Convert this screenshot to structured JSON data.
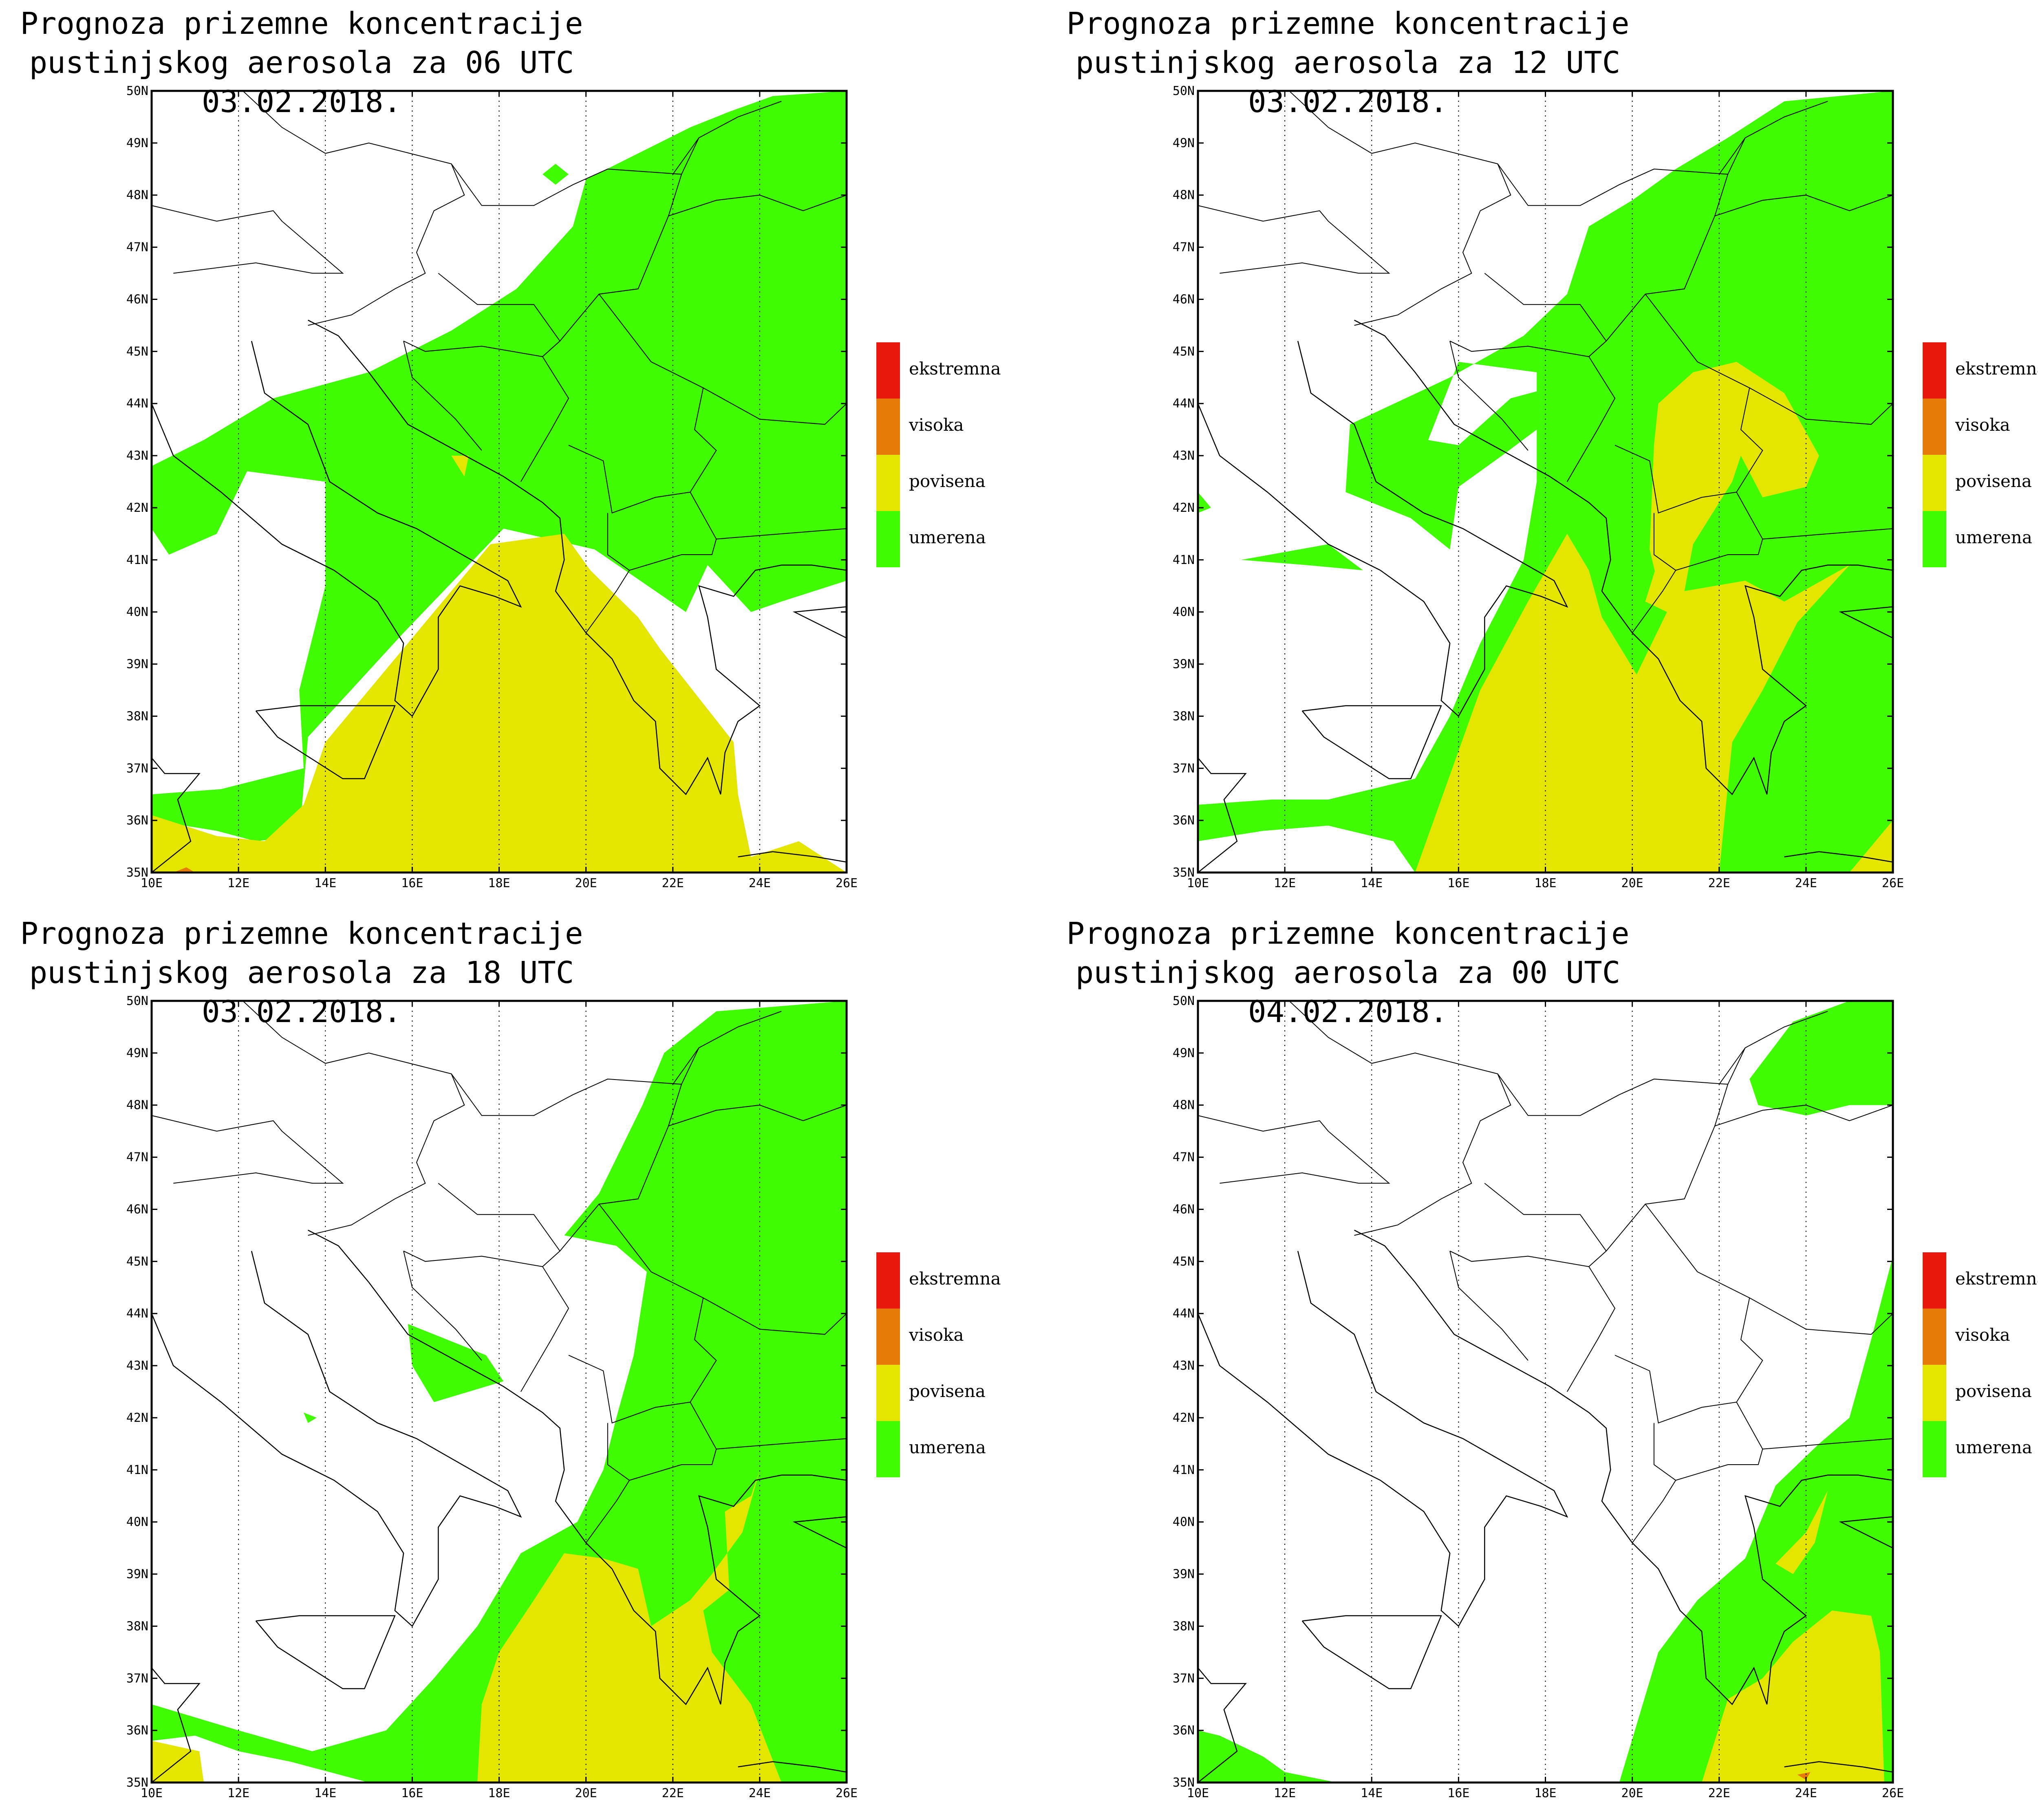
{
  "colors": {
    "umerena": "#3ffd00",
    "povisena": "#e5e600",
    "visoka": "#e77b07",
    "ekstremna": "#e9190d",
    "border": "#000000",
    "grid": "#000000"
  },
  "axes": {
    "lat_labels": [
      "35N",
      "36N",
      "37N",
      "38N",
      "39N",
      "40N",
      "41N",
      "42N",
      "43N",
      "44N",
      "45N",
      "46N",
      "47N",
      "48N",
      "49N",
      "50N"
    ],
    "lon_labels": [
      "10E",
      "12E",
      "14E",
      "16E",
      "18E",
      "20E",
      "22E",
      "24E",
      "26E"
    ]
  },
  "legend": [
    {
      "label": "ekstremna",
      "color_key": "ekstremna"
    },
    {
      "label": "visoka",
      "color_key": "visoka"
    },
    {
      "label": "povisena",
      "color_key": "povisena"
    },
    {
      "label": "umerena",
      "color_key": "umerena"
    }
  ],
  "panels": [
    {
      "id": "p06",
      "title_line1": "Prognoza prizemne koncentracije",
      "title_line2": "pustinjskog aerosola za 06 UTC 03.02.2018."
    },
    {
      "id": "p12",
      "title_line1": "Prognoza prizemne koncentracije",
      "title_line2": "pustinjskog aerosola za 12 UTC 03.02.2018."
    },
    {
      "id": "p18",
      "title_line1": "Prognoza prizemne koncentracije",
      "title_line2": "pustinjskog aerosola za 18 UTC 03.02.2018."
    },
    {
      "id": "p00",
      "title_line1": "Prognoza prizemne koncentracije",
      "title_line2": "pustinjskog aerosola za 00 UTC 04.02.2018."
    }
  ]
}
